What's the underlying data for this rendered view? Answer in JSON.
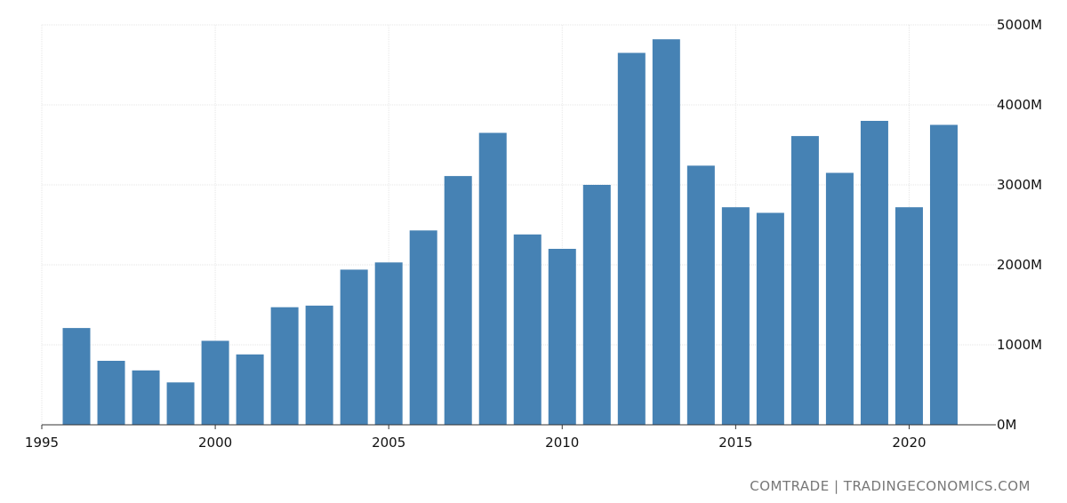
{
  "chart_data": {
    "type": "bar",
    "title": "",
    "xlabel": "",
    "ylabel": "",
    "categories": [
      "1996",
      "1997",
      "1998",
      "1999",
      "2000",
      "2001",
      "2002",
      "2003",
      "2004",
      "2005",
      "2006",
      "2007",
      "2008",
      "2009",
      "2010",
      "2011",
      "2012",
      "2013",
      "2014",
      "2015",
      "2016",
      "2017",
      "2018",
      "2019",
      "2020",
      "2021"
    ],
    "values": [
      1210,
      800,
      680,
      530,
      1050,
      880,
      1470,
      1490,
      1940,
      2030,
      2430,
      3110,
      3650,
      2380,
      2200,
      3000,
      4650,
      4820,
      3240,
      2720,
      2650,
      3610,
      3150,
      3800,
      2720,
      3750
    ],
    "units": "M",
    "ylim": [
      0,
      5000
    ],
    "xlim": [
      1995,
      2022.5
    ],
    "y_ticks": [
      "0M",
      "1000M",
      "2000M",
      "3000M",
      "4000M",
      "5000M"
    ],
    "x_ticks": [
      "1995",
      "2000",
      "2005",
      "2010",
      "2015",
      "2020"
    ],
    "y_axis_position": "right",
    "grid": true,
    "legend": "none",
    "bar_color": "#4682b4"
  },
  "source": "COMTRADE | TRADINGECONOMICS.COM"
}
